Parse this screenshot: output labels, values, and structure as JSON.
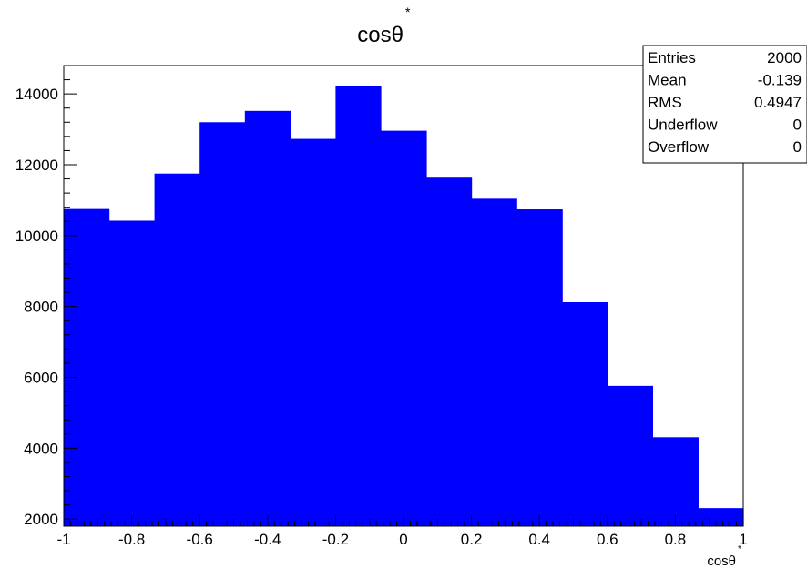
{
  "chart_data": {
    "type": "bar",
    "title": "cosθ",
    "title_superscript": "*",
    "xlabel": "cosθ",
    "xlabel_superscript": "*",
    "ylabel": "",
    "xlim": [
      -1,
      1
    ],
    "ylim": [
      1800,
      14800
    ],
    "bar_color": "#0000ff",
    "bin_edges": [
      -1.0,
      -0.867,
      -0.733,
      -0.6,
      -0.467,
      -0.333,
      -0.2,
      -0.067,
      0.067,
      0.2,
      0.333,
      0.467,
      0.6,
      0.733,
      0.867,
      1.0
    ],
    "values": [
      10750,
      10420,
      11750,
      13200,
      13520,
      12730,
      14220,
      12960,
      11660,
      11040,
      10740,
      8120,
      5760,
      4310,
      2310
    ],
    "x_ticks": [
      {
        "value": -1,
        "label": "-1"
      },
      {
        "value": -0.8,
        "label": "-0.8"
      },
      {
        "value": -0.6,
        "label": "-0.6"
      },
      {
        "value": -0.4,
        "label": "-0.4"
      },
      {
        "value": -0.2,
        "label": "-0.2"
      },
      {
        "value": 0,
        "label": "0"
      },
      {
        "value": 0.2,
        "label": "0.2"
      },
      {
        "value": 0.4,
        "label": "0.4"
      },
      {
        "value": 0.6,
        "label": "0.6"
      },
      {
        "value": 0.8,
        "label": "0.8"
      },
      {
        "value": 1,
        "label": "1"
      }
    ],
    "y_ticks": [
      {
        "value": 2000,
        "label": "2000"
      },
      {
        "value": 4000,
        "label": "4000"
      },
      {
        "value": 6000,
        "label": "6000"
      },
      {
        "value": 8000,
        "label": "8000"
      },
      {
        "value": 10000,
        "label": "10000"
      },
      {
        "value": 12000,
        "label": "12000"
      },
      {
        "value": 14000,
        "label": "14000"
      }
    ],
    "stats": [
      {
        "label": "Entries",
        "value": "2000"
      },
      {
        "label": "Mean",
        "value": "-0.139"
      },
      {
        "label": "RMS",
        "value": "0.4947"
      },
      {
        "label": "Underflow",
        "value": "0"
      },
      {
        "label": "Overflow",
        "value": "0"
      }
    ]
  }
}
